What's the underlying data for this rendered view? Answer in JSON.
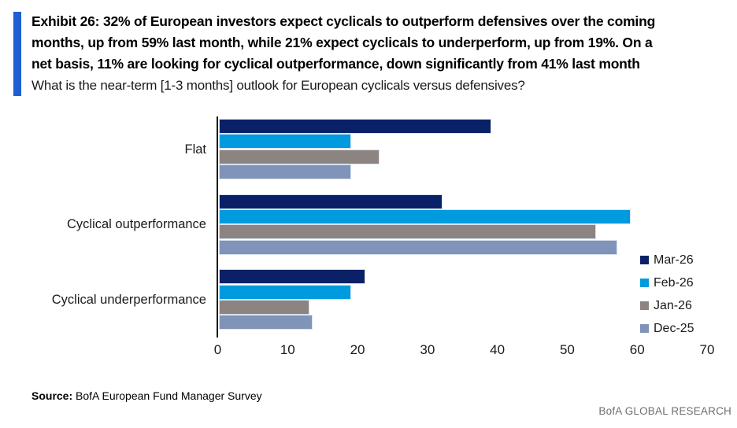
{
  "header": {
    "accent_color": "#1E5FD3",
    "title_lines": [
      "Exhibit 26: 32% of European investors expect cyclicals to outperform defensives over the coming",
      "months, up from 59% last month, while 21% expect cyclicals to underperform, up from 19%. On a",
      "net basis, 11% are looking for cyclical outperformance, down significantly from 41% last month"
    ],
    "subtitle": "What is the near-term [1-3 months] outlook for European cyclicals versus defensives?"
  },
  "chart_data": {
    "type": "bar",
    "orientation": "horizontal",
    "title": "What is the near-term [1-3 months] outlook for European cyclicals versus defensives?",
    "categories": [
      "Flat",
      "Cyclical outperformance",
      "Cyclical underperformance"
    ],
    "series": [
      {
        "name": "Mar-26",
        "color": "#0A2167",
        "values": [
          39,
          32,
          21
        ]
      },
      {
        "name": "Feb-26",
        "color": "#009ADE",
        "values": [
          19,
          59,
          19
        ]
      },
      {
        "name": "Jan-26",
        "color": "#8C8480",
        "values": [
          23,
          54,
          13
        ]
      },
      {
        "name": "Dec-25",
        "color": "#8093B8",
        "values": [
          19,
          57,
          13.5
        ]
      }
    ],
    "xlabel": "",
    "ylabel": "",
    "xlim": [
      0,
      70
    ],
    "xticks": [
      0,
      10,
      20,
      30,
      40,
      50,
      60,
      70
    ],
    "grid": false,
    "legend_position": "right"
  },
  "footer": {
    "source_label": "Source:",
    "source_text": "BofA European Fund Manager Survey",
    "brand": "BofA GLOBAL RESEARCH"
  }
}
